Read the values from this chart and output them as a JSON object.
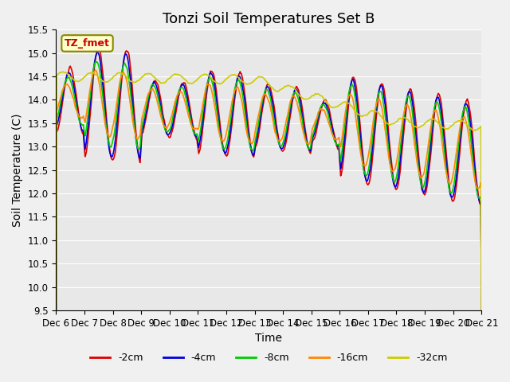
{
  "title": "Tonzi Soil Temperatures Set B",
  "xlabel": "Time",
  "ylabel": "Soil Temperature (C)",
  "ylim": [
    9.5,
    15.5
  ],
  "xlim": [
    0,
    15
  ],
  "xtick_labels": [
    "Dec 6",
    "Dec 7",
    "Dec 8",
    "Dec 9",
    "Dec 10",
    "Dec 11",
    "Dec 12",
    "Dec 13",
    "Dec 14",
    "Dec 15",
    "Dec 16",
    "Dec 17",
    "Dec 18",
    "Dec 19",
    "Dec 20",
    "Dec 21"
  ],
  "ytick_values": [
    9.5,
    10.0,
    10.5,
    11.0,
    11.5,
    12.0,
    12.5,
    13.0,
    13.5,
    14.0,
    14.5,
    15.0,
    15.5
  ],
  "legend_label": "TZ_fmet",
  "series_labels": [
    "-2cm",
    "-4cm",
    "-8cm",
    "-16cm",
    "-32cm"
  ],
  "series_colors": [
    "#dd0000",
    "#0000dd",
    "#00cc00",
    "#ff8800",
    "#cccc00"
  ],
  "background_color": "#e8e8e8",
  "title_fontsize": 13,
  "axis_fontsize": 10,
  "tick_fontsize": 8.5
}
